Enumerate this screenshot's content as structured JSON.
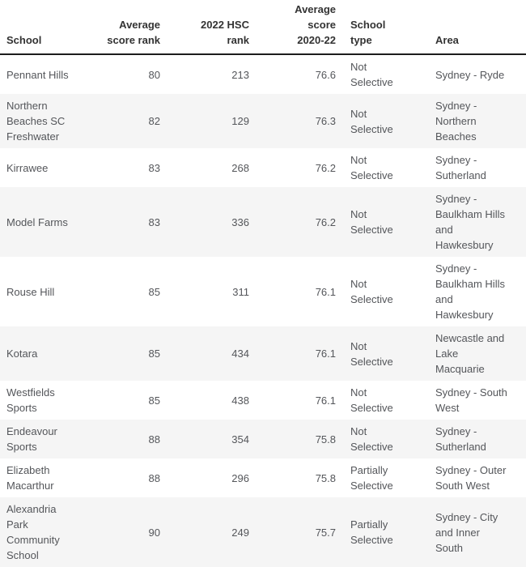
{
  "colors": {
    "header_text": "#333333",
    "body_text": "#54565a",
    "stripe_bg": "#f5f5f5",
    "header_border": "#1c1c1c",
    "background": "#ffffff"
  },
  "table": {
    "columns": [
      {
        "key": "school",
        "label": "School",
        "align": "left"
      },
      {
        "key": "avg_score_rank",
        "label": "Average score rank",
        "align": "right"
      },
      {
        "key": "hsc_rank",
        "label": "2022 HSC rank",
        "align": "right"
      },
      {
        "key": "avg_score",
        "label": "Average score 2020-22",
        "align": "right"
      },
      {
        "key": "school_type",
        "label": "School type",
        "align": "left"
      },
      {
        "key": "area",
        "label": "Area",
        "align": "left"
      }
    ],
    "rows": [
      {
        "school": "Pennant Hills",
        "avg_score_rank": "80",
        "hsc_rank": "213",
        "avg_score": "76.6",
        "school_type": "Not Selective",
        "area": "Sydney - Ryde"
      },
      {
        "school": "Northern Beaches SC Freshwater",
        "avg_score_rank": "82",
        "hsc_rank": "129",
        "avg_score": "76.3",
        "school_type": "Not Selective",
        "area": "Sydney - Northern Beaches"
      },
      {
        "school": "Kirrawee",
        "avg_score_rank": "83",
        "hsc_rank": "268",
        "avg_score": "76.2",
        "school_type": "Not Selective",
        "area": "Sydney - Sutherland"
      },
      {
        "school": "Model Farms",
        "avg_score_rank": "83",
        "hsc_rank": "336",
        "avg_score": "76.2",
        "school_type": "Not Selective",
        "area": "Sydney - Baulkham Hills and Hawkesbury"
      },
      {
        "school": "Rouse Hill",
        "avg_score_rank": "85",
        "hsc_rank": "311",
        "avg_score": "76.1",
        "school_type": "Not Selective",
        "area": "Sydney - Baulkham Hills and Hawkesbury"
      },
      {
        "school": "Kotara",
        "avg_score_rank": "85",
        "hsc_rank": "434",
        "avg_score": "76.1",
        "school_type": "Not Selective",
        "area": "Newcastle and Lake Macquarie"
      },
      {
        "school": "Westfields Sports",
        "avg_score_rank": "85",
        "hsc_rank": "438",
        "avg_score": "76.1",
        "school_type": "Not Selective",
        "area": "Sydney - South West"
      },
      {
        "school": "Endeavour Sports",
        "avg_score_rank": "88",
        "hsc_rank": "354",
        "avg_score": "75.8",
        "school_type": "Not Selective",
        "area": "Sydney - Sutherland"
      },
      {
        "school": "Elizabeth Macarthur",
        "avg_score_rank": "88",
        "hsc_rank": "296",
        "avg_score": "75.8",
        "school_type": "Partially Selective",
        "area": "Sydney - Outer South West"
      },
      {
        "school": "Alexandria Park Community School",
        "avg_score_rank": "90",
        "hsc_rank": "249",
        "avg_score": "75.7",
        "school_type": "Partially Selective",
        "area": "Sydney - City and Inner South"
      }
    ]
  }
}
